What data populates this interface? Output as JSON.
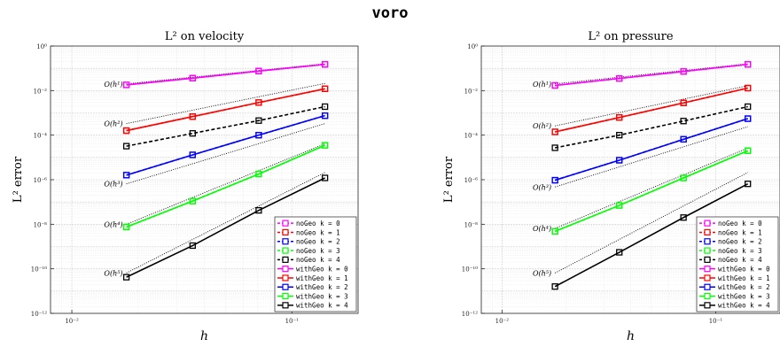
{
  "figure_title": "voro",
  "chart_data": [
    {
      "type": "line",
      "title": "L² on velocity",
      "xlabel": "h",
      "ylabel": "L² error",
      "x_scale": "log",
      "y_scale": "log",
      "xlim": [
        0.008,
        0.2
      ],
      "ylim": [
        1e-12,
        1
      ],
      "x_ticks": [
        "10⁻²",
        "10⁻¹"
      ],
      "y_ticks": [
        "10⁰",
        "10⁻²",
        "10⁻⁴",
        "10⁻⁶",
        "10⁻⁸",
        "10⁻¹⁰",
        "10⁻¹²"
      ],
      "grid": true,
      "legend_position": "bottom-right",
      "x": [
        0.0177,
        0.0354,
        0.0707,
        0.1414
      ],
      "series": [
        {
          "name": "noGeo k = 0",
          "color": "#ff00ff",
          "style": "dashed",
          "values": [
            0.018,
            0.036,
            0.075,
            0.15
          ]
        },
        {
          "name": "noGeo k = 1",
          "color": "#ff0000",
          "style": "dashed",
          "values": [
            0.00016,
            0.00068,
            0.0029,
            0.012
          ]
        },
        {
          "name": "noGeo k = 2",
          "color": "#0000ff",
          "style": "dashed",
          "values": [
            1.6e-06,
            1.3e-05,
            0.0001,
            0.00075
          ]
        },
        {
          "name": "noGeo k = 3",
          "color": "#00ff00",
          "style": "dashed",
          "values": [
            7.5e-09,
            1.1e-07,
            1.8e-06,
            3.5e-05
          ]
        },
        {
          "name": "noGeo k = 4",
          "color": "#000000",
          "style": "dashed",
          "values": [
            3.2e-05,
            0.00012,
            0.00045,
            0.0019
          ]
        },
        {
          "name": "withGeo k = 0",
          "color": "#ff00ff",
          "style": "solid",
          "values": [
            0.018,
            0.036,
            0.075,
            0.15
          ]
        },
        {
          "name": "withGeo k = 1",
          "color": "#ff0000",
          "style": "solid",
          "values": [
            0.00016,
            0.00068,
            0.0029,
            0.012
          ]
        },
        {
          "name": "withGeo k = 2",
          "color": "#0000ff",
          "style": "solid",
          "values": [
            1.6e-06,
            1.3e-05,
            0.0001,
            0.00075
          ]
        },
        {
          "name": "withGeo k = 3",
          "color": "#00ff00",
          "style": "solid",
          "values": [
            7.5e-09,
            1.1e-07,
            1.8e-06,
            3.5e-05
          ]
        },
        {
          "name": "withGeo k = 4",
          "color": "#000000",
          "style": "solid",
          "values": [
            4.2e-11,
            1.1e-09,
            4.2e-08,
            1.2e-06
          ]
        }
      ],
      "reference_slopes": [
        {
          "label": "O(h¹)",
          "order": 1,
          "start": 0.02
        },
        {
          "label": "O(h²)",
          "order": 2,
          "start": 0.00033
        },
        {
          "label": "O(h³)",
          "order": 3,
          "start": 6.5e-07
        },
        {
          "label": "O(h⁴)",
          "order": 4,
          "start": 1e-08
        },
        {
          "label": "O(h⁵)",
          "order": 5,
          "start": 6.5e-11
        }
      ]
    },
    {
      "type": "line",
      "title": "L² on pressure",
      "xlabel": "h",
      "ylabel": "L² error",
      "x_scale": "log",
      "y_scale": "log",
      "xlim": [
        0.008,
        0.2
      ],
      "ylim": [
        1e-12,
        1
      ],
      "x_ticks": [
        "10⁻²",
        "10⁻¹"
      ],
      "y_ticks": [
        "10⁰",
        "10⁻²",
        "10⁻⁴",
        "10⁻⁶",
        "10⁻⁸",
        "10⁻¹⁰",
        "10⁻¹²"
      ],
      "grid": true,
      "legend_position": "bottom-right",
      "x": [
        0.0177,
        0.0354,
        0.0707,
        0.1414
      ],
      "series": [
        {
          "name": "noGeo k = 0",
          "color": "#ff00ff",
          "style": "dashed",
          "values": [
            0.017,
            0.035,
            0.072,
            0.15
          ]
        },
        {
          "name": "noGeo k = 1",
          "color": "#ff0000",
          "style": "dashed",
          "values": [
            0.00014,
            0.00062,
            0.0028,
            0.013
          ]
        },
        {
          "name": "noGeo k = 2",
          "color": "#0000ff",
          "style": "dashed",
          "values": [
            9.5e-07,
            7.5e-06,
            6.5e-05,
            0.00055
          ]
        },
        {
          "name": "noGeo k = 3",
          "color": "#00ff00",
          "style": "dashed",
          "values": [
            4.8e-09,
            7e-08,
            1.2e-06,
            2e-05
          ]
        },
        {
          "name": "noGeo k = 4",
          "color": "#000000",
          "style": "dashed",
          "values": [
            2.7e-05,
            0.0001,
            0.00043,
            0.0019
          ]
        },
        {
          "name": "withGeo k = 0",
          "color": "#ff00ff",
          "style": "solid",
          "values": [
            0.017,
            0.035,
            0.072,
            0.15
          ]
        },
        {
          "name": "withGeo k = 1",
          "color": "#ff0000",
          "style": "solid",
          "values": [
            0.00014,
            0.00062,
            0.0028,
            0.013
          ]
        },
        {
          "name": "withGeo k = 2",
          "color": "#0000ff",
          "style": "solid",
          "values": [
            9.5e-07,
            7.5e-06,
            6.5e-05,
            0.00055
          ]
        },
        {
          "name": "withGeo k = 3",
          "color": "#00ff00",
          "style": "solid",
          "values": [
            4.8e-09,
            7e-08,
            1.2e-06,
            2e-05
          ]
        },
        {
          "name": "withGeo k = 4",
          "color": "#000000",
          "style": "solid",
          "values": [
            1.6e-11,
            5.5e-10,
            2e-08,
            6.5e-07
          ]
        }
      ],
      "reference_slopes": [
        {
          "label": "O(h¹)",
          "order": 1,
          "start": 0.02
        },
        {
          "label": "O(h²)",
          "order": 2,
          "start": 0.00026
        },
        {
          "label": "O(h³)",
          "order": 3,
          "start": 4.7e-07
        },
        {
          "label": "O(h⁴)",
          "order": 4,
          "start": 6.5e-09
        },
        {
          "label": "O(h⁵)",
          "order": 5,
          "start": 6.5e-11
        }
      ]
    }
  ]
}
